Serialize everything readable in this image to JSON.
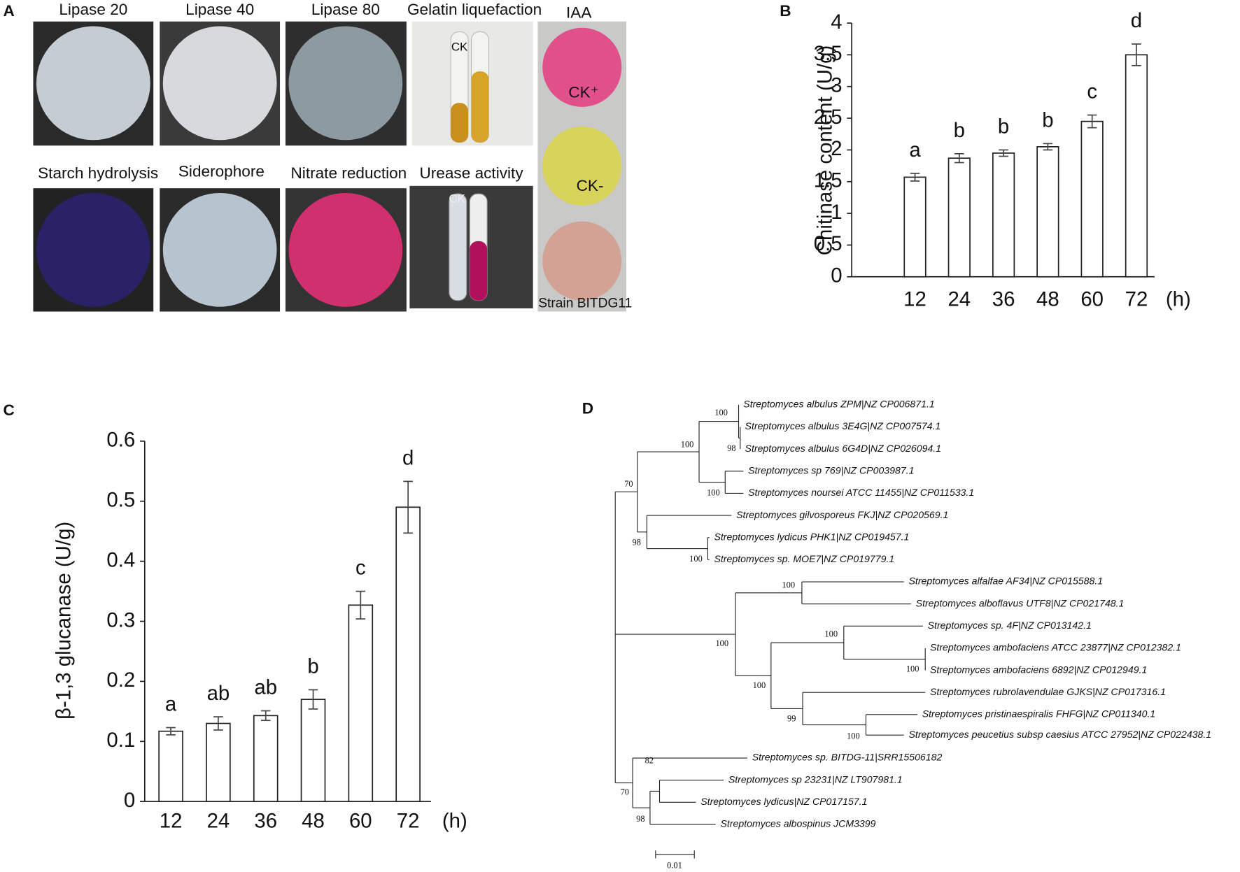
{
  "panel_labels": [
    "A",
    "B",
    "C",
    "D"
  ],
  "panel_a": {
    "photos": [
      "Lipase 20",
      "Lipase 40",
      "Lipase 80",
      "Gelatin liquefaction",
      "IAA",
      "Starch hydrolysis",
      "Siderophore",
      "Nitrate reduction",
      "Urease activity"
    ],
    "gelatin_ck": "CK",
    "urease_ck": "CK",
    "iaa_labels": [
      "CK⁺",
      "CK-",
      "Strain BITDG11"
    ]
  },
  "chart_data": [
    {
      "type": "bar",
      "ylabel": "Chitinase content (U/g)",
      "x_label": "(h)",
      "categories": [
        "12",
        "24",
        "36",
        "48",
        "60",
        "72"
      ],
      "values": [
        1.57,
        1.87,
        1.95,
        2.05,
        2.45,
        3.5
      ],
      "errors": [
        0.06,
        0.07,
        0.05,
        0.05,
        0.1,
        0.17
      ],
      "annotations": [
        "a",
        "b",
        "b",
        "b",
        "c",
        "d"
      ],
      "color": "#ffffff",
      "ylim": [
        0,
        4
      ],
      "yticks": [
        0,
        0.5,
        1,
        1.5,
        2,
        2.5,
        3,
        3.5,
        4
      ]
    },
    {
      "type": "bar",
      "ylabel": "β-1,3 glucanase (U/g)",
      "x_label": "(h)",
      "categories": [
        "12",
        "24",
        "36",
        "48",
        "60",
        "72"
      ],
      "values": [
        0.117,
        0.13,
        0.143,
        0.17,
        0.327,
        0.49
      ],
      "errors": [
        0.006,
        0.011,
        0.008,
        0.016,
        0.023,
        0.043
      ],
      "annotations": [
        "a",
        "ab",
        "ab",
        "b",
        "c",
        "d"
      ],
      "color": "#ffffff",
      "ylim": [
        0,
        0.6
      ],
      "yticks": [
        0,
        0.1,
        0.2,
        0.3,
        0.4,
        0.5,
        0.6
      ]
    }
  ],
  "tree": {
    "leaves": [
      "Streptomyces albulus ZPM|NZ CP006871.1",
      "Streptomyces albulus 3E4G|NZ CP007574.1",
      "Streptomyces albulus 6G4D|NZ CP026094.1",
      "Streptomyces sp 769|NZ CP003987.1",
      "Streptomyces noursei ATCC 11455|NZ CP011533.1",
      "Streptomyces gilvosporeus FKJ|NZ CP020569.1",
      "Streptomyces lydicus PHK1|NZ CP019457.1",
      "Streptomyces sp. MOE7|NZ CP019779.1",
      "Streptomyces alfalfae AF34|NZ CP015588.1",
      "Streptomyces alboflavus UTF8|NZ CP021748.1",
      "Streptomyces sp. 4F|NZ CP013142.1",
      "Streptomyces ambofaciens ATCC 23877|NZ CP012382.1",
      "Streptomyces ambofaciens 6892|NZ CP012949.1",
      "Streptomyces rubrolavendulae GJKS|NZ CP017316.1",
      "Streptomyces pristinaespiralis FHFG|NZ CP011340.1",
      "Streptomyces peucetius subsp caesius ATCC 27952|NZ CP022438.1",
      "Streptomyces sp. BITDG-11|SRR15506182",
      "Streptomyces sp 23231|NZ LT907981.1",
      "Streptomyces lydicus|NZ CP017157.1",
      "Streptomyces albospinus JCM3399"
    ],
    "bootstraps": [
      100,
      100,
      98,
      70,
      100,
      98,
      100,
      100,
      100,
      100,
      100,
      100,
      99,
      100,
      82,
      70,
      98
    ],
    "scale_label": "0.01"
  }
}
